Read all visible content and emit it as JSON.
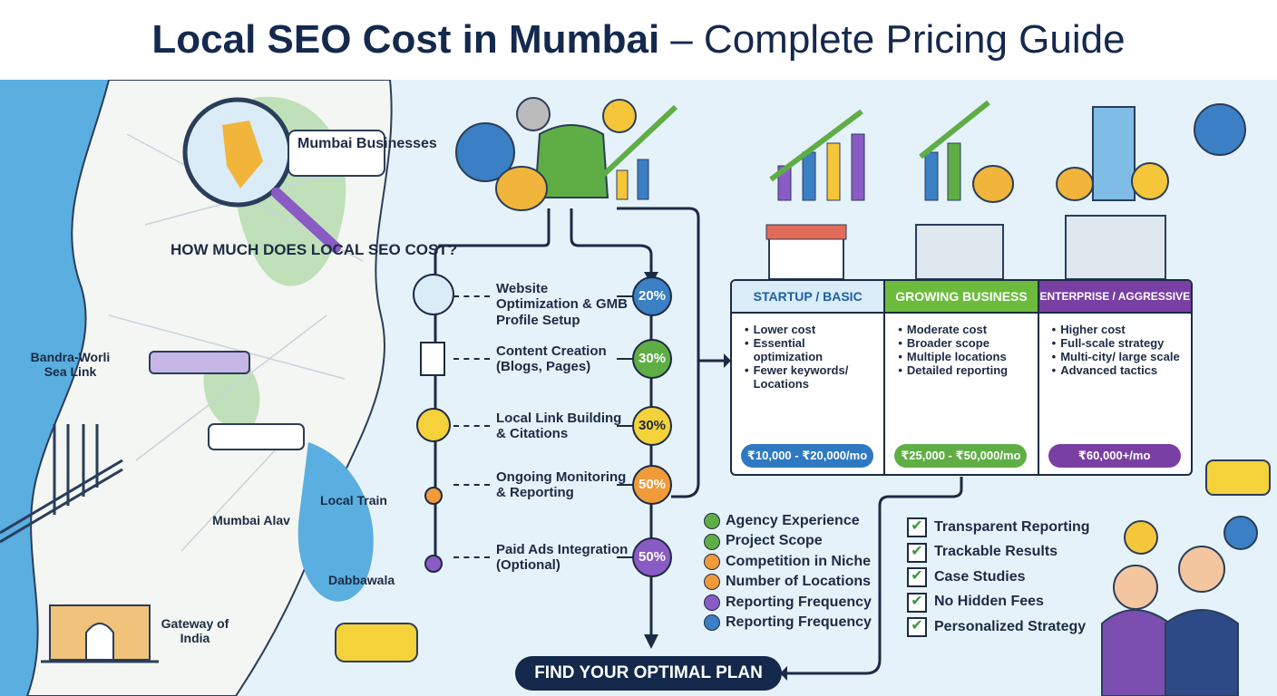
{
  "title": {
    "bold": "Local SEO Cost in Mumbai",
    "rest": "– Complete Pricing Guide"
  },
  "map": {
    "callout": "Mumbai Businesses",
    "question": "HOW MUCH DOES LOCAL SEO COST?",
    "places": [
      "Bandra-Worli Sea Link",
      "Local Train",
      "Mumbai Alav",
      "Dabbawala",
      "Gateway of India"
    ]
  },
  "services": [
    {
      "label": "Website Optimization & GMB Profile Setup",
      "share": "20%"
    },
    {
      "label": "Content Creation (Blogs, Pages)",
      "share": "30%"
    },
    {
      "label": "Local Link Building & Citations",
      "share": "30%"
    },
    {
      "label": "Ongoing Monitoring & Reporting",
      "share": "50%"
    },
    {
      "label": "Paid Ads Integration (Optional)",
      "share": "50%"
    }
  ],
  "plans": [
    {
      "name": "STARTUP / BASIC",
      "features": [
        "Lower cost",
        "Essential optimization",
        "Fewer keywords/ Locations"
      ],
      "price": "₹10,000 - ₹20,000/mo"
    },
    {
      "name": "GROWING BUSINESS",
      "features": [
        "Moderate cost",
        "Broader scope",
        "Multiple locations",
        "Detailed reporting"
      ],
      "price": "₹25,000 - ₹50,000/mo"
    },
    {
      "name": "ENTERPRISE / AGGRESSIVE",
      "features": [
        "Higher cost",
        "Full-scale strategy",
        "Multi-city/ large scale",
        "Advanced tactics"
      ],
      "price": "₹60,000+/mo"
    }
  ],
  "factors": [
    "Agency Experience",
    "Project Scope",
    "Competition in Niche",
    "Number of Locations",
    "Reporting Frequency",
    "Reporting Frequency"
  ],
  "benefits": [
    "Transparent Reporting",
    "Trackable Results",
    "Case Studies",
    "No Hidden Fees",
    "Personalized Strategy"
  ],
  "cta": "FIND YOUR OPTIMAL PLAN"
}
